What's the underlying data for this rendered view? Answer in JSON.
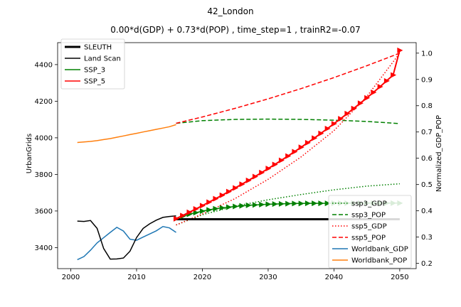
{
  "chart_data": {
    "type": "line",
    "title": "42_London",
    "subtitle": "0.00*d(GDP) + 0.73*d(POP) , time_step=1 , trainR2=-0.07",
    "xlabel": "",
    "ylabel": "UrbanGrids",
    "ylabel_right": "Normalized_GDP_POP",
    "xlim": [
      1998,
      2052.5
    ],
    "ylim": [
      3285,
      4520
    ],
    "ylim_right": [
      0.18,
      1.04
    ],
    "xticks": [
      "2000",
      "2010",
      "2020",
      "2030",
      "2040",
      "2050"
    ],
    "yticks": [
      "3400",
      "3600",
      "3800",
      "4000",
      "4200",
      "4400"
    ],
    "yticks_right": [
      "0.2",
      "0.3",
      "0.4",
      "0.5",
      "0.6",
      "0.7",
      "0.8",
      "0.9",
      "1.0"
    ],
    "grid": false,
    "legend_left": {
      "placement": "top-left",
      "entries": [
        {
          "name": "SLEUTH",
          "color": "#000000",
          "style": "solid-thick"
        },
        {
          "name": "Land Scan",
          "color": "#000000",
          "style": "solid"
        },
        {
          "name": "SSP_3",
          "color": "#008000",
          "style": "solid"
        },
        {
          "name": "SSP_5",
          "color": "#ff0000",
          "style": "solid"
        }
      ]
    },
    "legend_right": {
      "placement": "bottom-right",
      "entries": [
        {
          "name": "ssp3_GDP",
          "color": "#008000",
          "style": "dotted"
        },
        {
          "name": "ssp3_POP",
          "color": "#008000",
          "style": "dashed"
        },
        {
          "name": "ssp5_GDP",
          "color": "#ff0000",
          "style": "dotted"
        },
        {
          "name": "ssp5_POP",
          "color": "#ff0000",
          "style": "dashed"
        },
        {
          "name": "Worldbank_GDP",
          "color": "#1f77b4",
          "style": "solid"
        },
        {
          "name": "Worldbank_POP",
          "color": "#ff7f0e",
          "style": "solid"
        }
      ]
    },
    "series": [
      {
        "name": "SLEUTH",
        "axis": "left",
        "color": "#000000",
        "x": [
          2016,
          2050
        ],
        "y": [
          3555,
          3555
        ]
      },
      {
        "name": "Land Scan",
        "axis": "left",
        "color": "#000000",
        "x": [
          2001,
          2002,
          2003,
          2004,
          2005,
          2006,
          2007,
          2008,
          2009,
          2010,
          2011,
          2012,
          2013,
          2014,
          2015,
          2016
        ],
        "y": [
          3545,
          3543,
          3548,
          3505,
          3395,
          3337,
          3338,
          3343,
          3380,
          3455,
          3505,
          3530,
          3550,
          3565,
          3570,
          3573
        ]
      },
      {
        "name": "SSP_3",
        "axis": "left",
        "color": "#008000",
        "marker": "triangle-right",
        "x": [
          2016,
          2017,
          2018,
          2019,
          2020,
          2021,
          2022,
          2023,
          2024,
          2025,
          2026,
          2027,
          2028,
          2029,
          2030,
          2031,
          2032,
          2033,
          2034,
          2035,
          2036,
          2037,
          2038,
          2039,
          2040,
          2041,
          2042,
          2043,
          2044,
          2045,
          2046,
          2047,
          2048,
          2049,
          2050
        ],
        "y": [
          3558,
          3571,
          3582,
          3591,
          3599,
          3606,
          3612,
          3617,
          3621,
          3625,
          3628,
          3631,
          3633,
          3635,
          3637,
          3638,
          3639,
          3640,
          3641,
          3641,
          3642,
          3642,
          3642,
          3642,
          3643,
          3643,
          3643,
          3643,
          3643,
          3643,
          3643,
          3643,
          3643,
          3643,
          3643
        ]
      },
      {
        "name": "SSP_5",
        "axis": "left",
        "color": "#ff0000",
        "marker": "triangle-right",
        "x": [
          2016,
          2017,
          2018,
          2019,
          2020,
          2021,
          2022,
          2023,
          2024,
          2025,
          2026,
          2027,
          2028,
          2029,
          2030,
          2031,
          2032,
          2033,
          2034,
          2035,
          2036,
          2037,
          2038,
          2039,
          2040,
          2041,
          2042,
          2043,
          2044,
          2045,
          2046,
          2047,
          2048,
          2049,
          2050
        ],
        "y": [
          3558,
          3575,
          3593,
          3611,
          3629,
          3648,
          3667,
          3686,
          3706,
          3726,
          3746,
          3767,
          3788,
          3810,
          3832,
          3854,
          3877,
          3900,
          3924,
          3948,
          3973,
          3998,
          4024,
          4050,
          4077,
          4104,
          4132,
          4160,
          4189,
          4218,
          4248,
          4279,
          4311,
          4343,
          4478
        ]
      },
      {
        "name": "ssp3_GDP",
        "axis": "right",
        "color": "#008000",
        "style": "dotted",
        "x": [
          2016,
          2020,
          2025,
          2030,
          2035,
          2040,
          2045,
          2050
        ],
        "y": [
          0.346,
          0.385,
          0.418,
          0.442,
          0.462,
          0.48,
          0.494,
          0.503
        ]
      },
      {
        "name": "ssp3_POP",
        "axis": "right",
        "color": "#008000",
        "style": "dashed",
        "x": [
          2016,
          2020,
          2025,
          2030,
          2035,
          2040,
          2045,
          2050
        ],
        "y": [
          0.733,
          0.743,
          0.748,
          0.749,
          0.748,
          0.745,
          0.74,
          0.732
        ]
      },
      {
        "name": "ssp5_GDP",
        "axis": "right",
        "color": "#ff0000",
        "style": "dotted",
        "x": [
          2016,
          2020,
          2025,
          2030,
          2035,
          2040,
          2045,
          2050
        ],
        "y": [
          0.346,
          0.388,
          0.447,
          0.52,
          0.605,
          0.705,
          0.835,
          1.0
        ]
      },
      {
        "name": "ssp5_POP",
        "axis": "right",
        "color": "#ff0000",
        "style": "dashed",
        "x": [
          2016,
          2020,
          2025,
          2030,
          2035,
          2040,
          2045,
          2050
        ],
        "y": [
          0.733,
          0.757,
          0.79,
          0.826,
          0.865,
          0.907,
          0.952,
          1.0
        ]
      },
      {
        "name": "Worldbank_GDP",
        "axis": "right",
        "color": "#1f77b4",
        "style": "solid",
        "x": [
          2001,
          2002,
          2003,
          2004,
          2005,
          2006,
          2007,
          2008,
          2009,
          2010,
          2011,
          2012,
          2013,
          2014,
          2015,
          2016
        ],
        "y": [
          0.214,
          0.226,
          0.25,
          0.278,
          0.298,
          0.318,
          0.337,
          0.323,
          0.292,
          0.288,
          0.3,
          0.312,
          0.324,
          0.34,
          0.335,
          0.318
        ]
      },
      {
        "name": "Worldbank_POP",
        "axis": "right",
        "color": "#ff7f0e",
        "style": "solid",
        "x": [
          2001,
          2002,
          2003,
          2004,
          2005,
          2006,
          2007,
          2008,
          2009,
          2010,
          2011,
          2012,
          2013,
          2014,
          2015,
          2016
        ],
        "y": [
          0.66,
          0.662,
          0.664,
          0.667,
          0.671,
          0.675,
          0.68,
          0.685,
          0.69,
          0.695,
          0.7,
          0.705,
          0.71,
          0.715,
          0.72,
          0.728
        ]
      }
    ]
  }
}
